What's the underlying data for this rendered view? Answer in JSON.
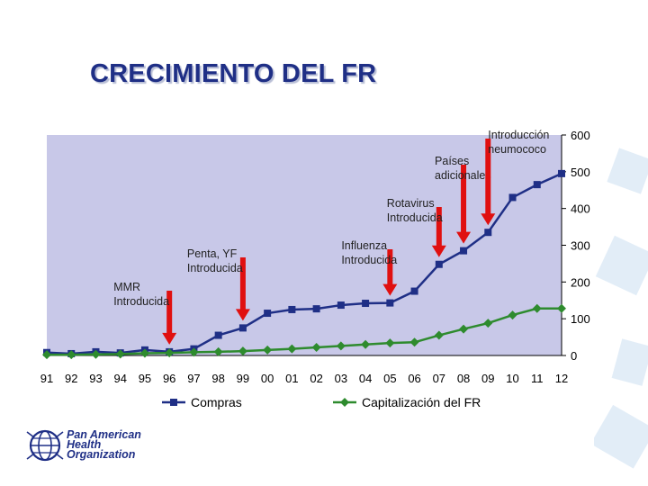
{
  "slide": {
    "title": "CRECIMIENTO DEL FR",
    "org_lines": [
      "Pan American",
      "Health",
      "Organization"
    ]
  },
  "colors": {
    "title": "#1f2f86",
    "plot_bg": "#c8c8e8",
    "compras": "#1f2f86",
    "capitalizacion": "#2e8b2e",
    "arrow": "#e01010"
  },
  "chart_data": {
    "type": "line",
    "categories": [
      "91",
      "92",
      "93",
      "94",
      "95",
      "96",
      "97",
      "98",
      "99",
      "00",
      "01",
      "02",
      "03",
      "04",
      "05",
      "06",
      "07",
      "08",
      "09",
      "10",
      "11",
      "12"
    ],
    "series": [
      {
        "name": "Compras",
        "marker": "square",
        "values": [
          8,
          5,
          10,
          7,
          15,
          10,
          18,
          55,
          75,
          115,
          125,
          127,
          137,
          142,
          143,
          175,
          248,
          285,
          335,
          430,
          465,
          495
        ]
      },
      {
        "name": "Capitalización del FR",
        "marker": "diamond",
        "values": [
          2,
          2,
          3,
          4,
          6,
          7,
          9,
          10,
          12,
          15,
          18,
          22,
          26,
          30,
          34,
          36,
          55,
          72,
          88,
          110,
          128,
          128
        ]
      }
    ],
    "ylim": [
      0,
      600
    ],
    "yticks": [
      0,
      100,
      200,
      300,
      400,
      500,
      600
    ],
    "y_axis_side": "right",
    "grid": false,
    "legend": "bottom",
    "annotations": [
      {
        "text": [
          "MMR",
          "Introducida"
        ],
        "category": "96"
      },
      {
        "text": [
          "Penta, YF",
          "Introducida"
        ],
        "category": "99"
      },
      {
        "text": [
          "Influenza",
          "Introducida"
        ],
        "category": "05"
      },
      {
        "text": [
          "Rotavirus",
          "Introducida"
        ],
        "category": "07"
      },
      {
        "text": [
          "Países",
          "adicionales"
        ],
        "category": "08"
      },
      {
        "text": [
          "Introducción",
          "neumococo"
        ],
        "category": "09"
      }
    ]
  }
}
